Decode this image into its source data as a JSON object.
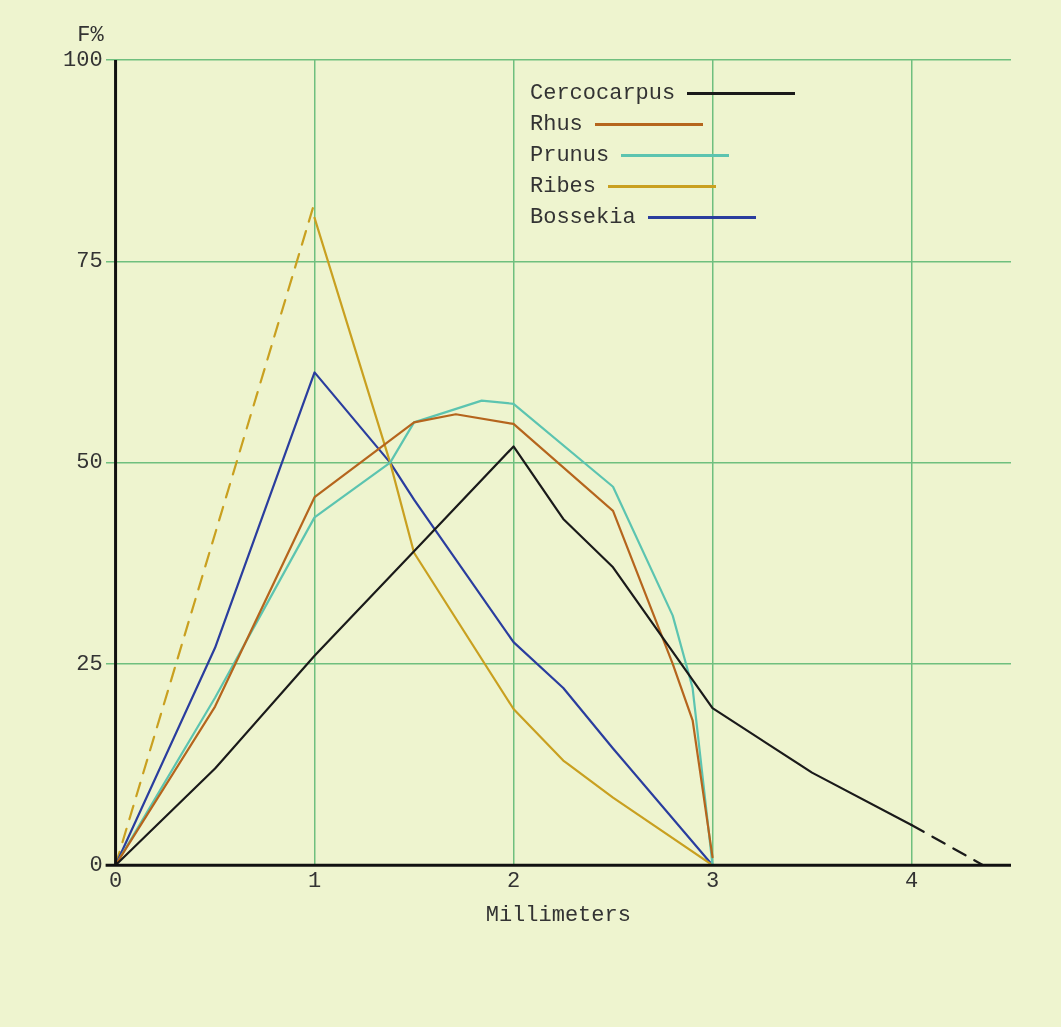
{
  "chart_data": {
    "type": "line",
    "xlabel": "Millimeters",
    "ylabel": "F%",
    "xlim": [
      -0.05,
      4.5
    ],
    "ylim": [
      0,
      100
    ],
    "xticks": [
      0,
      1,
      2,
      3,
      4
    ],
    "yticks": [
      0,
      25,
      50,
      75,
      100
    ],
    "grid": true,
    "legend": "top right",
    "marker": "none",
    "line_style": "solid",
    "series": [
      {
        "name": "Cercocarpus",
        "color": "#1a1a1a",
        "x": [
          0,
          0.5,
          1,
          1.5,
          2,
          2.25,
          2.5,
          3,
          3.5,
          4
        ],
        "values": [
          0,
          12,
          26,
          39,
          52,
          43,
          37,
          19.5,
          11.5,
          5
        ]
      },
      {
        "name": "Rhus",
        "color": "#b5651d",
        "x": [
          0,
          0.5,
          1,
          1.5,
          1.71,
          2,
          2.5,
          2.8,
          2.9,
          3
        ],
        "values": [
          0,
          19.7,
          45.7,
          55,
          56,
          54.8,
          44,
          25,
          18,
          1
        ]
      },
      {
        "name": "Prunus",
        "color": "#5cc4b0",
        "x": [
          0,
          0.5,
          1,
          1.38,
          1.5,
          1.84,
          2,
          2.5,
          2.8,
          2.9,
          3
        ],
        "values": [
          0,
          20.8,
          43.2,
          50,
          55,
          57.7,
          57.3,
          47,
          31,
          22,
          0
        ]
      },
      {
        "name": "Ribes",
        "color": "#c9a020",
        "x": [
          1,
          1.38,
          1.5,
          2,
          2.25,
          2.5,
          3
        ],
        "values": [
          80.4,
          50,
          38.8,
          19.4,
          13,
          8.4,
          0
        ]
      },
      {
        "name": "Bossekia",
        "color": "#2a3d9e",
        "x": [
          0,
          0.5,
          1,
          1.38,
          1.5,
          2,
          2.25,
          2.5,
          3
        ],
        "values": [
          0,
          27,
          61.2,
          50,
          45.4,
          27.7,
          22,
          14.5,
          0
        ]
      },
      {
        "color": "#c9a020",
        "line_style": "dashed",
        "x": [
          0,
          1
        ],
        "values": [
          0,
          82.3
        ]
      },
      {
        "color": "#1a1a1a",
        "line_style": "dashed",
        "x": [
          4,
          4.36
        ],
        "values": [
          5,
          0
        ]
      }
    ]
  }
}
